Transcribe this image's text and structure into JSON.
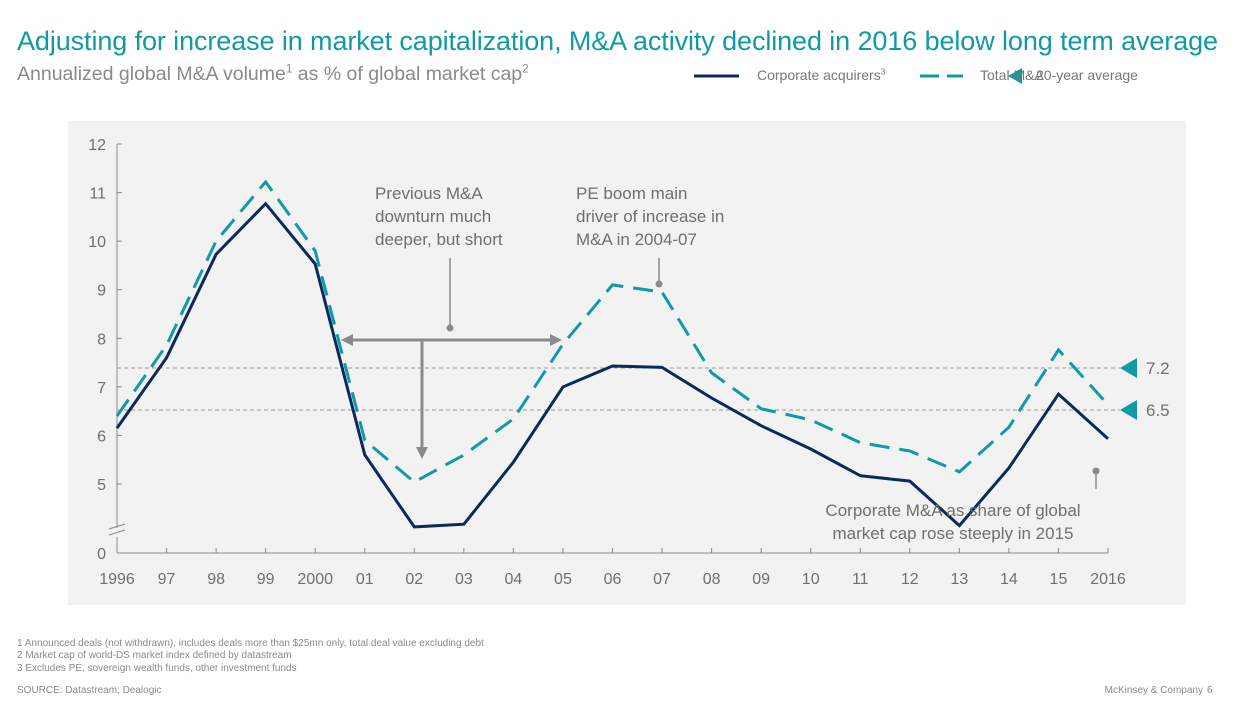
{
  "header": {
    "title": "Adjusting for increase in market capitalization, M&A activity declined in 2016 below long term average",
    "subtitle_main": "Annualized global M&A volume",
    "subtitle_sup1": "1",
    "subtitle_mid": " as % of global market cap",
    "subtitle_sup2": "2"
  },
  "legend": {
    "corporate_label": "Corporate acquirers",
    "corporate_sup": "3",
    "total_label": "Total M&A",
    "average_label": "20-year average"
  },
  "colors": {
    "corporate": "#0b2a5b",
    "total": "#0f9aa6",
    "annotation": "#8a8a8a",
    "average_marker": "#0f9aa6"
  },
  "annotations": {
    "downturn": [
      "Previous M&A",
      "downturn much",
      "deeper, but short"
    ],
    "pe_boom": [
      "PE boom main",
      "driver of increase in",
      "M&A in 2004-07"
    ],
    "corporate_2015": [
      "Corporate M&A as share of global",
      "market cap rose steeply in 2015"
    ]
  },
  "chart_data": {
    "type": "line",
    "title": "Annualized global M&A volume as % of global market cap",
    "xlabel": "",
    "ylabel": "",
    "x": [
      "1996",
      "97",
      "98",
      "99",
      "2000",
      "01",
      "02",
      "03",
      "04",
      "05",
      "06",
      "07",
      "08",
      "09",
      "10",
      "11",
      "12",
      "13",
      "14",
      "15",
      "2016"
    ],
    "yticks": [
      0,
      5,
      6,
      7,
      8,
      9,
      10,
      11,
      12
    ],
    "ylim": [
      0,
      12
    ],
    "y_axis_break": [
      0,
      5
    ],
    "grid": false,
    "legend_position": "top-right",
    "series": [
      {
        "name": "Corporate acquirers",
        "style": "solid",
        "values": [
          6.15,
          7.6,
          9.73,
          10.77,
          9.53,
          5.6,
          4.5,
          4.96,
          5.45,
          7.0,
          7.43,
          7.4,
          6.77,
          6.2,
          5.72,
          5.17,
          5.06,
          4.73,
          5.33,
          6.85,
          5.93
        ]
      },
      {
        "name": "Total M&A",
        "style": "dashed",
        "values": [
          6.4,
          7.86,
          10.0,
          11.22,
          9.8,
          5.9,
          5.04,
          5.6,
          6.34,
          7.88,
          9.1,
          8.95,
          7.29,
          6.55,
          6.32,
          5.85,
          5.68,
          5.25,
          6.17,
          7.76,
          6.63
        ]
      }
    ],
    "reference_lines": [
      {
        "name": "20-year average Total M&A",
        "value": 7.2,
        "label": "7.2"
      },
      {
        "name": "20-year average Corporate acquirers",
        "value": 6.5,
        "label": "6.5"
      }
    ]
  },
  "footer": {
    "footnotes": [
      "1 Announced deals (not withdrawn), includes deals more than $25mn only, total deal value excluding debt",
      "2 Market cap of world-DS market index defined by datastream",
      "3 Excludes PE, sovereign wealth funds, other investment funds"
    ],
    "source": "SOURCE: Datastream; Dealogic",
    "brand": "McKinsey & Company",
    "page_number": "6"
  }
}
